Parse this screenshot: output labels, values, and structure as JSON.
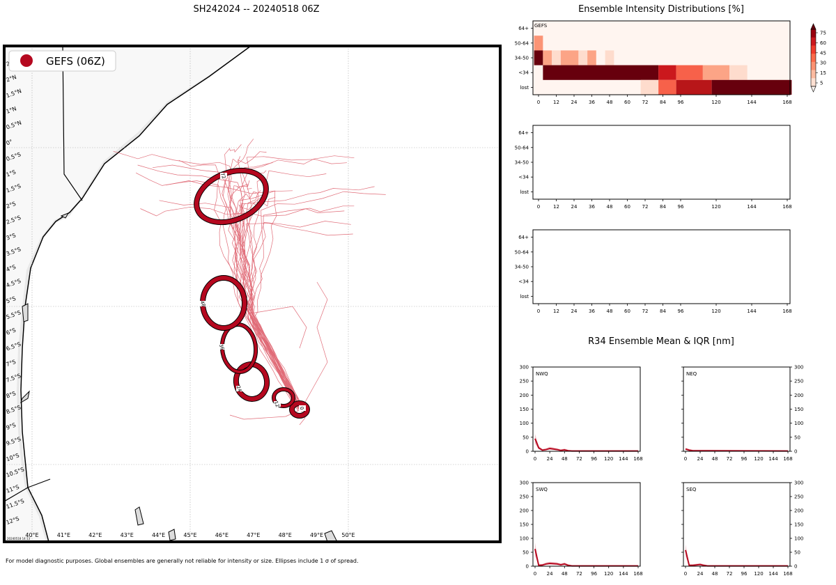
{
  "title": "SH242024 -- 20240518 06Z",
  "footnote": "For model diagnostic purposes. Global ensembles are generally not reliable for intensity or size. Ellipses include 1 σ of spread.",
  "stamp": "20240518 14:13",
  "map": {
    "legend_label": "GEFS (06Z)",
    "legend_color": "#b5081f",
    "track_color": "#d63a4a",
    "lat_labels": [
      "2.5°N",
      "2°N",
      "1.5°N",
      "1°N",
      "0.5°N",
      "0°",
      "0.5°S",
      "1°S",
      "1.5°S",
      "2°S",
      "2.5°S",
      "3°S",
      "3.5°S",
      "4°S",
      "4.5°S",
      "5°S",
      "5.5°S",
      "6°S",
      "6.5°S",
      "7°S",
      "7.5°S",
      "8°S",
      "8.5°S",
      "9°S",
      "9.5°S",
      "10°S",
      "10.5°S",
      "11°S",
      "11.5°S",
      "12°S"
    ],
    "lon_labels": [
      "40°E",
      "41°E",
      "42°E",
      "43°E",
      "44°E",
      "45°E",
      "46°E",
      "47°E",
      "48°E",
      "49°E",
      "50°E"
    ],
    "ellipse_labels": [
      "0",
      "12",
      "24",
      "36",
      "48",
      "72"
    ]
  },
  "intensity": {
    "title": "Ensemble Intensity Distributions [%]",
    "panel_label": "GEFS",
    "y_labels": [
      "64+",
      "50-64",
      "34-50",
      "<34",
      "lost"
    ],
    "x_labels": [
      "0",
      "12",
      "24",
      "36",
      "48",
      "60",
      "72",
      "84",
      "96",
      "120",
      "144",
      "168"
    ],
    "colorbar_ticks": [
      "75",
      "60",
      "45",
      "30",
      "15",
      "5"
    ]
  },
  "r34": {
    "title": "R34 Ensemble Mean & IQR [nm]",
    "quadrants": [
      "NWQ",
      "NEQ",
      "SWQ",
      "SEQ"
    ],
    "y_ticks": [
      "300",
      "250",
      "200",
      "150",
      "100",
      "50",
      "0"
    ],
    "x_ticks": [
      "0",
      "24",
      "48",
      "72",
      "96",
      "120",
      "144",
      "168"
    ]
  }
}
